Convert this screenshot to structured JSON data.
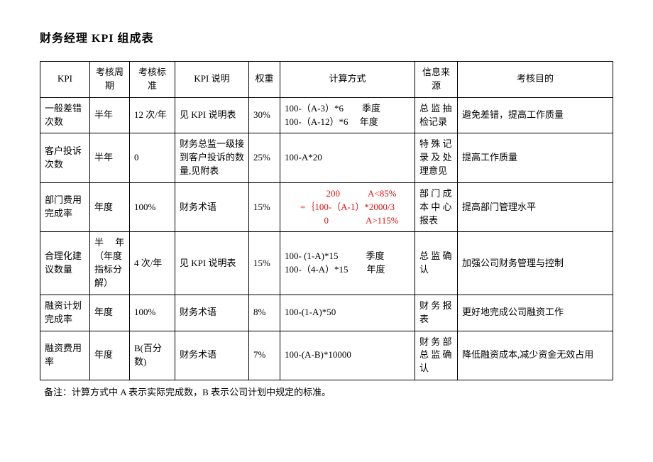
{
  "title": "财务经理 KPI 组成表",
  "columns": [
    "KPI",
    "考核周期",
    "考核标准",
    "KPI 说明",
    "权重",
    "计算方式",
    "信息来源",
    "考核目的"
  ],
  "rows": [
    {
      "kpi": "一般差错次数",
      "cycle": "半年",
      "standard": "12 次/年",
      "desc": "见 KPI 说明表",
      "weight": "30%",
      "calc": "100-（A-3）*6　　季度\n100-（A-12）*6　 年度",
      "source": "总 监 抽检记录",
      "goal": "避免差错，提高工作质量"
    },
    {
      "kpi": "客户投诉次数",
      "cycle": "半年",
      "standard": "0",
      "desc": "财务总监一级接到客户投诉的数量,见附表",
      "weight": "25%",
      "calc": "100-A*20",
      "source": "特 殊 记录 及 处理意见",
      "goal": "提高工作质量"
    },
    {
      "kpi": "部门费用完成率",
      "cycle": "年度",
      "standard": "100%",
      "desc": "财务术语",
      "weight": "15%",
      "calc_red": "　　　200　　　A<85%\n=｛100-（A-1）*2000/3\n　　　0　　　　A>115%",
      "source": "部 门 成本 中 心报表",
      "goal": "提高部门管理水平"
    },
    {
      "kpi": "合理化建议数量",
      "cycle": "半　 年（年度指标分解）",
      "standard": "4 次/年",
      "desc": "见 KPI 说明表",
      "weight": "15%",
      "calc": "100- (1-A)*15　　　季度\n100-（4-A）*15　　年度",
      "source": "总 监 确认",
      "goal": "加强公司财务管理与控制"
    },
    {
      "kpi": "融资计划完成率",
      "cycle": "年度",
      "standard": "100%",
      "desc": "财务术语",
      "weight": "8%",
      "calc": "100-(1-A)*50",
      "source": "财 务 报表",
      "goal": "更好地完成公司融资工作"
    },
    {
      "kpi": "融资费用率",
      "cycle": "年度",
      "standard": "B(百分数)",
      "desc": "财务术语",
      "weight": "7%",
      "calc": "100-(A-B)*10000",
      "source": "财 务 部总 监 确认",
      "goal": "降低融资成本,减少资金无效占用"
    }
  ],
  "footnote": "备注：计算方式中 A 表示实际完成数，B 表示公司计划中规定的标准。"
}
